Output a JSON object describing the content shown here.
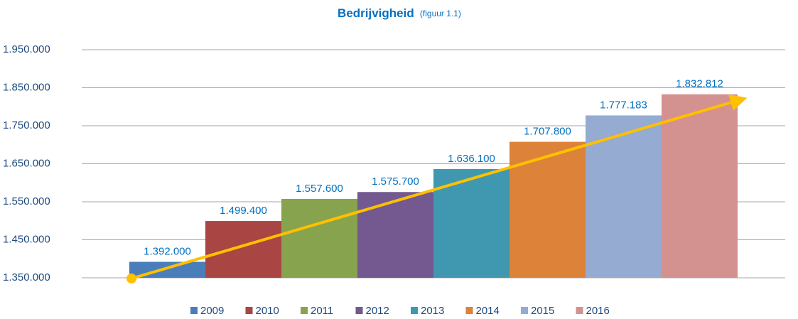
{
  "chart_data": {
    "type": "bar",
    "title": "Bedrijvigheid",
    "subtitle": "(figuur 1.1)",
    "categories": [
      null
    ],
    "series": [
      {
        "name": "2009",
        "color": "#4a7ebb",
        "values": [
          1392000
        ],
        "value_labels": [
          "1.392.000"
        ]
      },
      {
        "name": "2010",
        "color": "#a94543",
        "values": [
          1499400
        ],
        "value_labels": [
          "1.499.400"
        ]
      },
      {
        "name": "2011",
        "color": "#88a34d",
        "values": [
          1557600
        ],
        "value_labels": [
          "1.557.600"
        ]
      },
      {
        "name": "2012",
        "color": "#735990",
        "values": [
          1575700
        ],
        "value_labels": [
          "1.575.700"
        ]
      },
      {
        "name": "2013",
        "color": "#3f98b0",
        "values": [
          1636100
        ],
        "value_labels": [
          "1.636.100"
        ]
      },
      {
        "name": "2014",
        "color": "#dc8339",
        "values": [
          1707800
        ],
        "value_labels": [
          "1.707.800"
        ]
      },
      {
        "name": "2015",
        "color": "#95abd1",
        "values": [
          1777183
        ],
        "value_labels": [
          "1.777.183"
        ]
      },
      {
        "name": "2016",
        "color": "#d39190",
        "values": [
          1832812
        ],
        "value_labels": [
          "1.832.812"
        ]
      }
    ],
    "ylim": [
      1350000,
      1950000
    ],
    "yticks": [
      {
        "value": 1350000,
        "label": "1.350.000"
      },
      {
        "value": 1450000,
        "label": "1.450.000"
      },
      {
        "value": 1550000,
        "label": "1.550.000"
      },
      {
        "value": 1650000,
        "label": "1.650.000"
      },
      {
        "value": 1750000,
        "label": "1.750.000"
      },
      {
        "value": 1850000,
        "label": "1.850.000"
      },
      {
        "value": 1950000,
        "label": "1.950.000"
      }
    ],
    "grid": true,
    "legend": "bottom"
  }
}
